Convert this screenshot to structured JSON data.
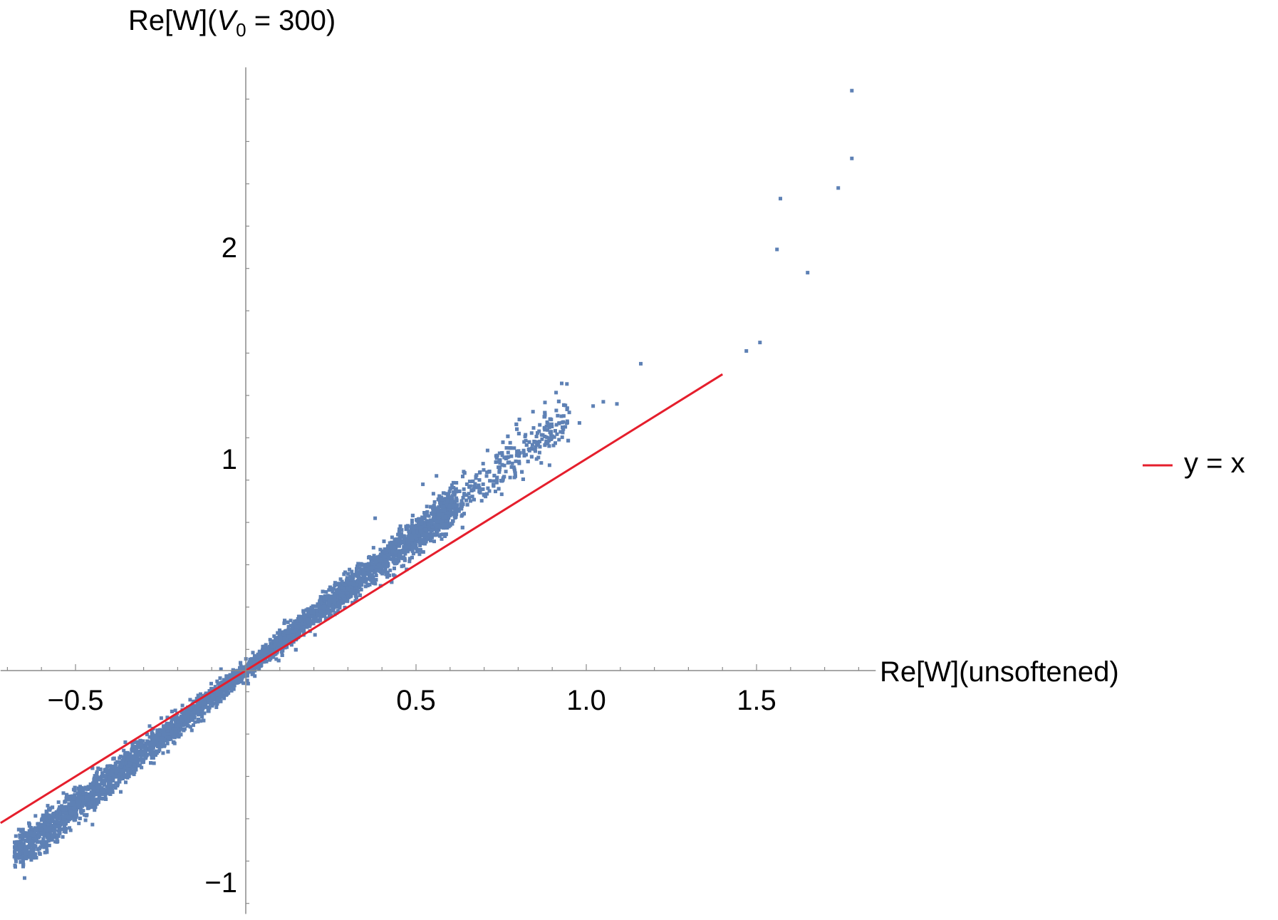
{
  "chart_data": {
    "type": "scatter",
    "title": "",
    "xlabel": "Re[W](unsoftened)",
    "ylabel_main": "Re[W](",
    "ylabel_var": "V",
    "ylabel_sub": "0",
    "ylabel_rest": " = 300)",
    "xlim": [
      -0.72,
      1.85
    ],
    "ylim": [
      -1.15,
      2.85
    ],
    "x_ticks_major": [
      -0.5,
      0.5,
      1.0,
      1.5
    ],
    "x_tick_labels": [
      "−0.5",
      "0.5",
      "1.0",
      "1.5"
    ],
    "y_ticks_major": [
      -1,
      1,
      2
    ],
    "y_tick_labels": [
      "−1",
      "1",
      "2"
    ],
    "grid": false,
    "legend_position": "right",
    "series": [
      {
        "kind": "scatter",
        "color": "#5e81b5",
        "cloud": {
          "slope": 1.28,
          "x_range": [
            -0.68,
            0.95
          ],
          "count": 5500
        },
        "sample_points": [
          [
            1.16,
            1.45
          ],
          [
            1.02,
            1.25
          ],
          [
            1.05,
            1.27
          ],
          [
            1.09,
            1.26
          ],
          [
            0.95,
            1.22
          ],
          [
            0.93,
            1.15
          ],
          [
            0.98,
            1.17
          ],
          [
            1.47,
            1.51
          ],
          [
            1.51,
            1.55
          ],
          [
            1.56,
            1.99
          ],
          [
            1.57,
            2.23
          ],
          [
            1.65,
            1.88
          ],
          [
            1.74,
            2.28
          ],
          [
            1.78,
            2.42
          ],
          [
            1.78,
            2.74
          ],
          [
            0.56,
            0.92
          ],
          [
            0.71,
            1.04
          ],
          [
            0.64,
            0.94
          ],
          [
            0.52,
            0.88
          ],
          [
            0.38,
            0.72
          ]
        ]
      },
      {
        "name": "y = x",
        "kind": "line",
        "color": "#e51e2c",
        "x": [
          -0.72,
          1.4
        ],
        "y": [
          -0.72,
          1.4
        ]
      }
    ],
    "legend": [
      {
        "label": "y = x",
        "color": "#e51e2c"
      }
    ]
  }
}
